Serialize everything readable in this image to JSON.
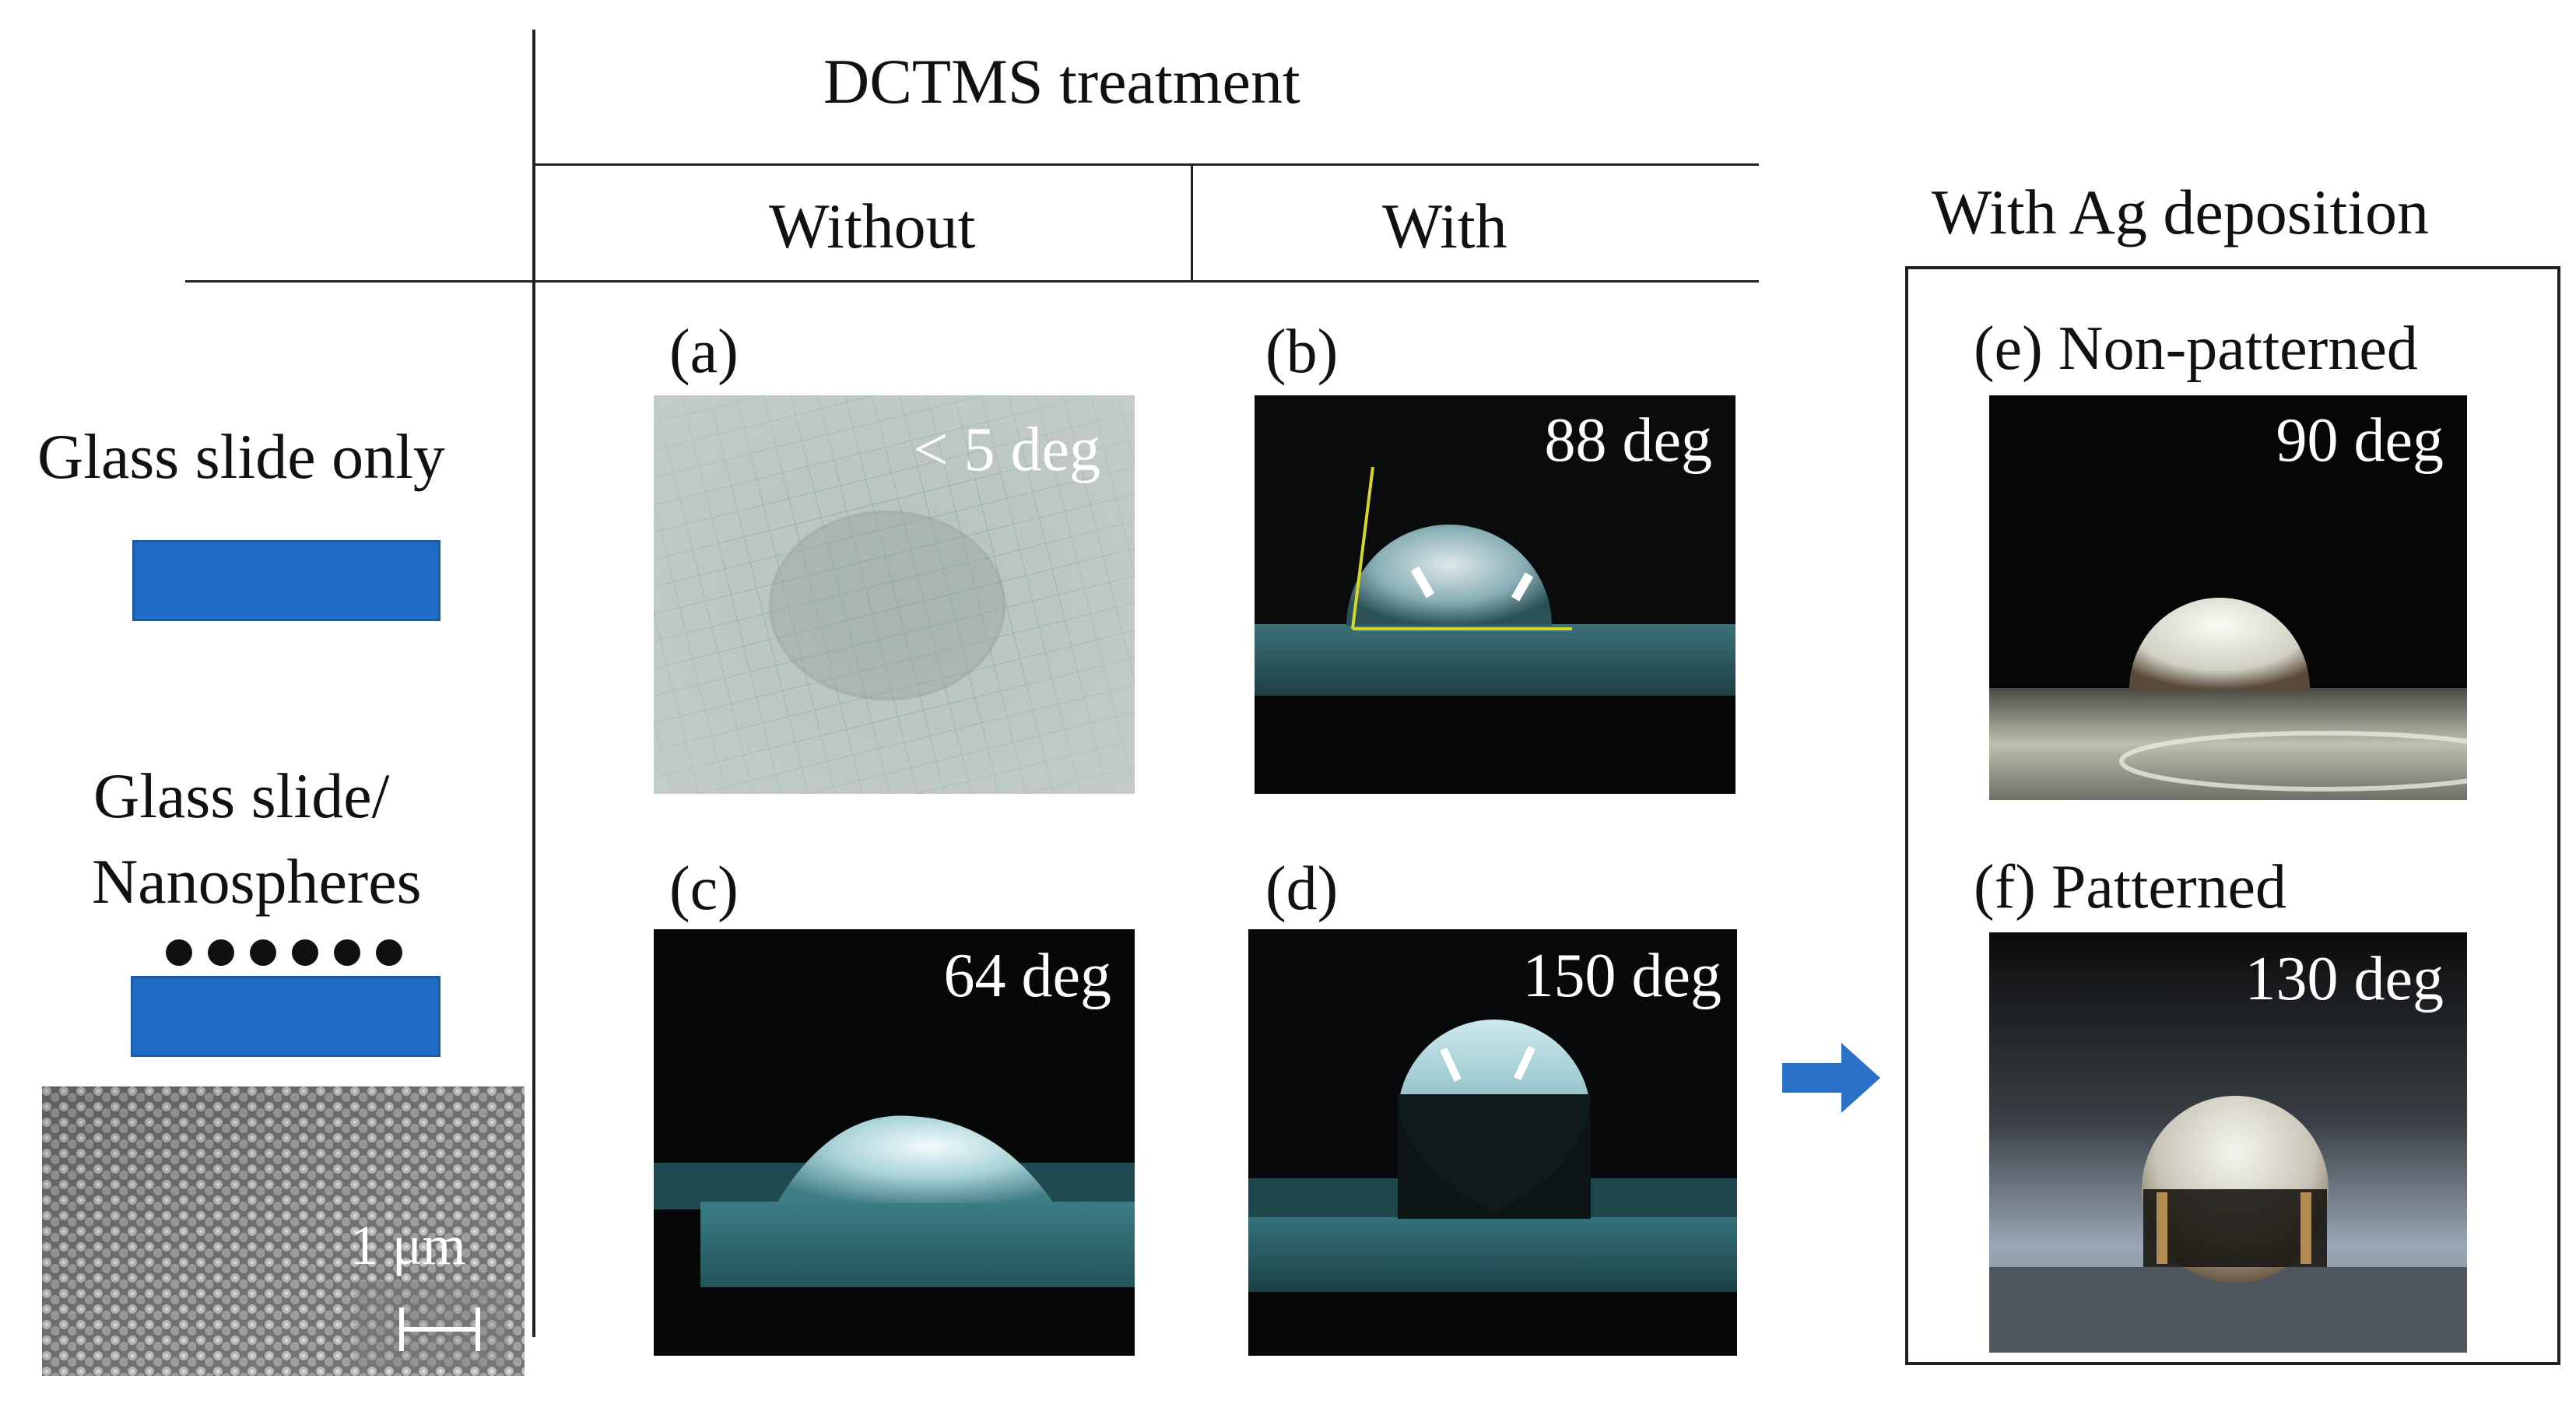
{
  "header": {
    "treatment_title": "DCTMS treatment",
    "col_without": "Without",
    "col_with": "With",
    "ag_title": "With Ag deposition"
  },
  "rows": {
    "glass_only": "Glass slide only",
    "glass_nano_line1": "Glass slide/",
    "glass_nano_line2": "Nanospheres",
    "scale_bar": "1 μm"
  },
  "panels": {
    "a": {
      "label": "(a)",
      "angle": "< 5 deg"
    },
    "b": {
      "label": "(b)",
      "angle": "88 deg"
    },
    "c": {
      "label": "(c)",
      "angle": "64 deg"
    },
    "d": {
      "label": "(d)",
      "angle": "150 deg"
    },
    "e": {
      "label": "(e) Non-patterned",
      "angle": "90 deg"
    },
    "f": {
      "label": "(f)  Patterned",
      "angle": "130 deg"
    }
  },
  "colors": {
    "substrate_blue": "#1f6cc4",
    "arrow_blue": "#2a72c8",
    "tangent_yellow": "#d6d62a"
  }
}
